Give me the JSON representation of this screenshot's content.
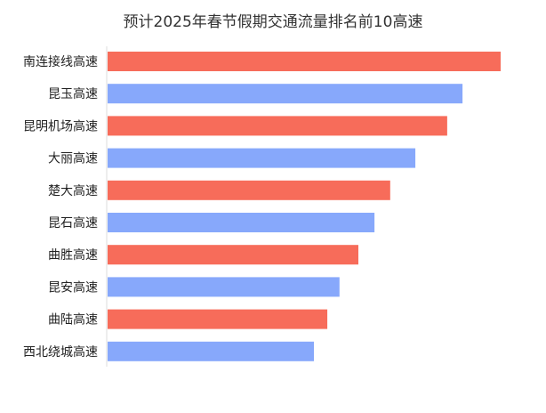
{
  "chart_data": {
    "type": "bar",
    "orientation": "horizontal",
    "title": "预计2025年春节假期交通流量排名前10高速",
    "categories": [
      "南连接线高速",
      "昆玉高速",
      "昆明机场高速",
      "大丽高速",
      "楚大高速",
      "昆石高速",
      "曲胜高速",
      "昆安高速",
      "曲陆高速",
      "西北绕城高速"
    ],
    "values": [
      100,
      90.3,
      86.4,
      78.3,
      71.9,
      67.9,
      63.8,
      59.0,
      55.9,
      52.5
    ],
    "value_note_visible": false,
    "colors": [
      "#f76c5a",
      "#87a8fb"
    ],
    "grid": false,
    "legend": "none"
  }
}
